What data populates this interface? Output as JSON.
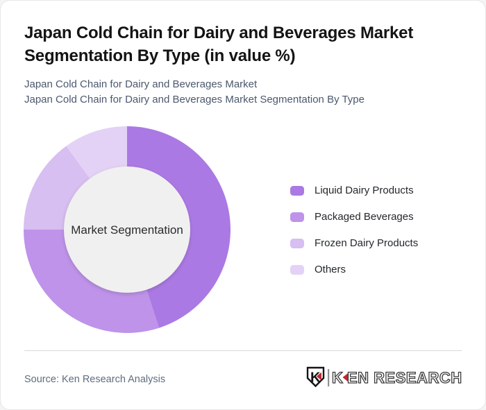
{
  "header": {
    "title": "Japan Cold Chain for Dairy and Beverages Market Segmentation By Type (in value %)",
    "subtitles": [
      "Japan Cold Chain for Dairy and Beverages Market",
      "Japan Cold Chain for Dairy and Beverages Market Segmentation By Type"
    ]
  },
  "chart_data": {
    "type": "pie",
    "variant": "donut",
    "title": "Japan Cold Chain for Dairy and Beverages Market Segmentation By Type (in value %)",
    "center_label": "Market Segmentation",
    "categories": [
      "Liquid Dairy Products",
      "Packaged Beverages",
      "Frozen Dairy Products",
      "Others"
    ],
    "values": [
      45,
      30,
      15,
      10
    ],
    "value_unit": "value %",
    "colors": [
      "#ab79e3",
      "#be93e9",
      "#d7bff1",
      "#e3d2f6"
    ],
    "start_angle_deg": 0,
    "direction": "clockwise",
    "legend_position": "right",
    "inner_hole_color": "#f0f0f0"
  },
  "footer": {
    "source": "Source: Ken Research Analysis",
    "logo": {
      "text": "KEN RESEARCH",
      "mark_letter": "K",
      "accent_color": "#c0272d"
    }
  }
}
